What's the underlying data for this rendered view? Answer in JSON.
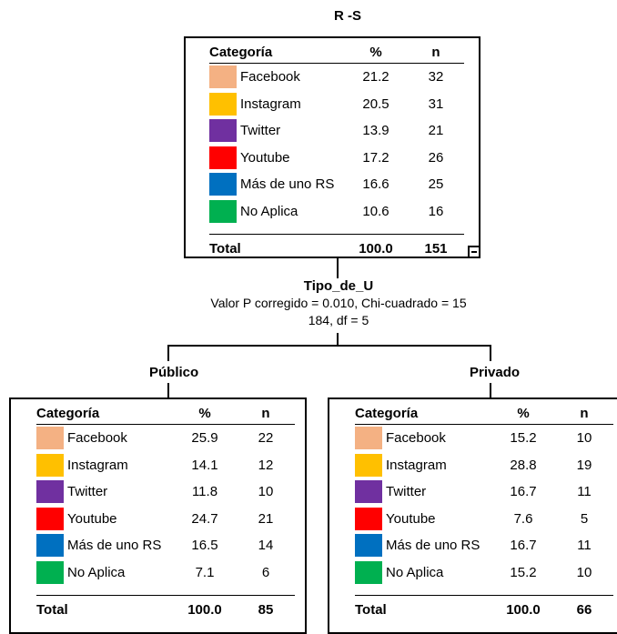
{
  "root": {
    "title": "R -S",
    "headers": {
      "category": "Categoría",
      "pct": "%",
      "n": "n"
    },
    "rows": [
      {
        "category": "Facebook",
        "pct": "21.2",
        "n": "32",
        "color": "#F4B183"
      },
      {
        "category": "Instagram",
        "pct": "20.5",
        "n": "31",
        "color": "#FFC000"
      },
      {
        "category": "Twitter",
        "pct": "13.9",
        "n": "21",
        "color": "#7030A0"
      },
      {
        "category": "Youtube",
        "pct": "17.2",
        "n": "26",
        "color": "#FF0000"
      },
      {
        "category": "Más de uno RS",
        "pct": "16.6",
        "n": "25",
        "color": "#0070C0"
      },
      {
        "category": "No Aplica",
        "pct": "10.6",
        "n": "16",
        "color": "#00B050"
      }
    ],
    "total": {
      "label": "Total",
      "pct": "100.0",
      "n": "151"
    }
  },
  "split": {
    "variable": "Tipo_de_U",
    "line1": "Valor P corregido = 0.010, Chi-cuadrado = 15",
    "line2": "184, df = 5"
  },
  "left": {
    "branch_label": "Público",
    "headers": {
      "category": "Categoría",
      "pct": "%",
      "n": "n"
    },
    "rows": [
      {
        "category": "Facebook",
        "pct": "25.9",
        "n": "22",
        "color": "#F4B183"
      },
      {
        "category": "Instagram",
        "pct": "14.1",
        "n": "12",
        "color": "#FFC000"
      },
      {
        "category": "Twitter",
        "pct": "11.8",
        "n": "10",
        "color": "#7030A0"
      },
      {
        "category": "Youtube",
        "pct": "24.7",
        "n": "21",
        "color": "#FF0000"
      },
      {
        "category": "Más de uno RS",
        "pct": "16.5",
        "n": "14",
        "color": "#0070C0"
      },
      {
        "category": "No Aplica",
        "pct": "7.1",
        "n": "6",
        "color": "#00B050"
      }
    ],
    "total": {
      "label": "Total",
      "pct": "100.0",
      "n": "85"
    }
  },
  "right": {
    "branch_label": "Privado",
    "headers": {
      "category": "Categoría",
      "pct": "%",
      "n": "n"
    },
    "rows": [
      {
        "category": "Facebook",
        "pct": "15.2",
        "n": "10",
        "color": "#F4B183"
      },
      {
        "category": "Instagram",
        "pct": "28.8",
        "n": "19",
        "color": "#FFC000"
      },
      {
        "category": "Twitter",
        "pct": "16.7",
        "n": "11",
        "color": "#7030A0"
      },
      {
        "category": "Youtube",
        "pct": "7.6",
        "n": "5",
        "color": "#FF0000"
      },
      {
        "category": "Más de uno RS",
        "pct": "16.7",
        "n": "11",
        "color": "#0070C0"
      },
      {
        "category": "No Aplica",
        "pct": "15.2",
        "n": "10",
        "color": "#00B050"
      }
    ],
    "total": {
      "label": "Total",
      "pct": "100.0",
      "n": "66"
    }
  }
}
